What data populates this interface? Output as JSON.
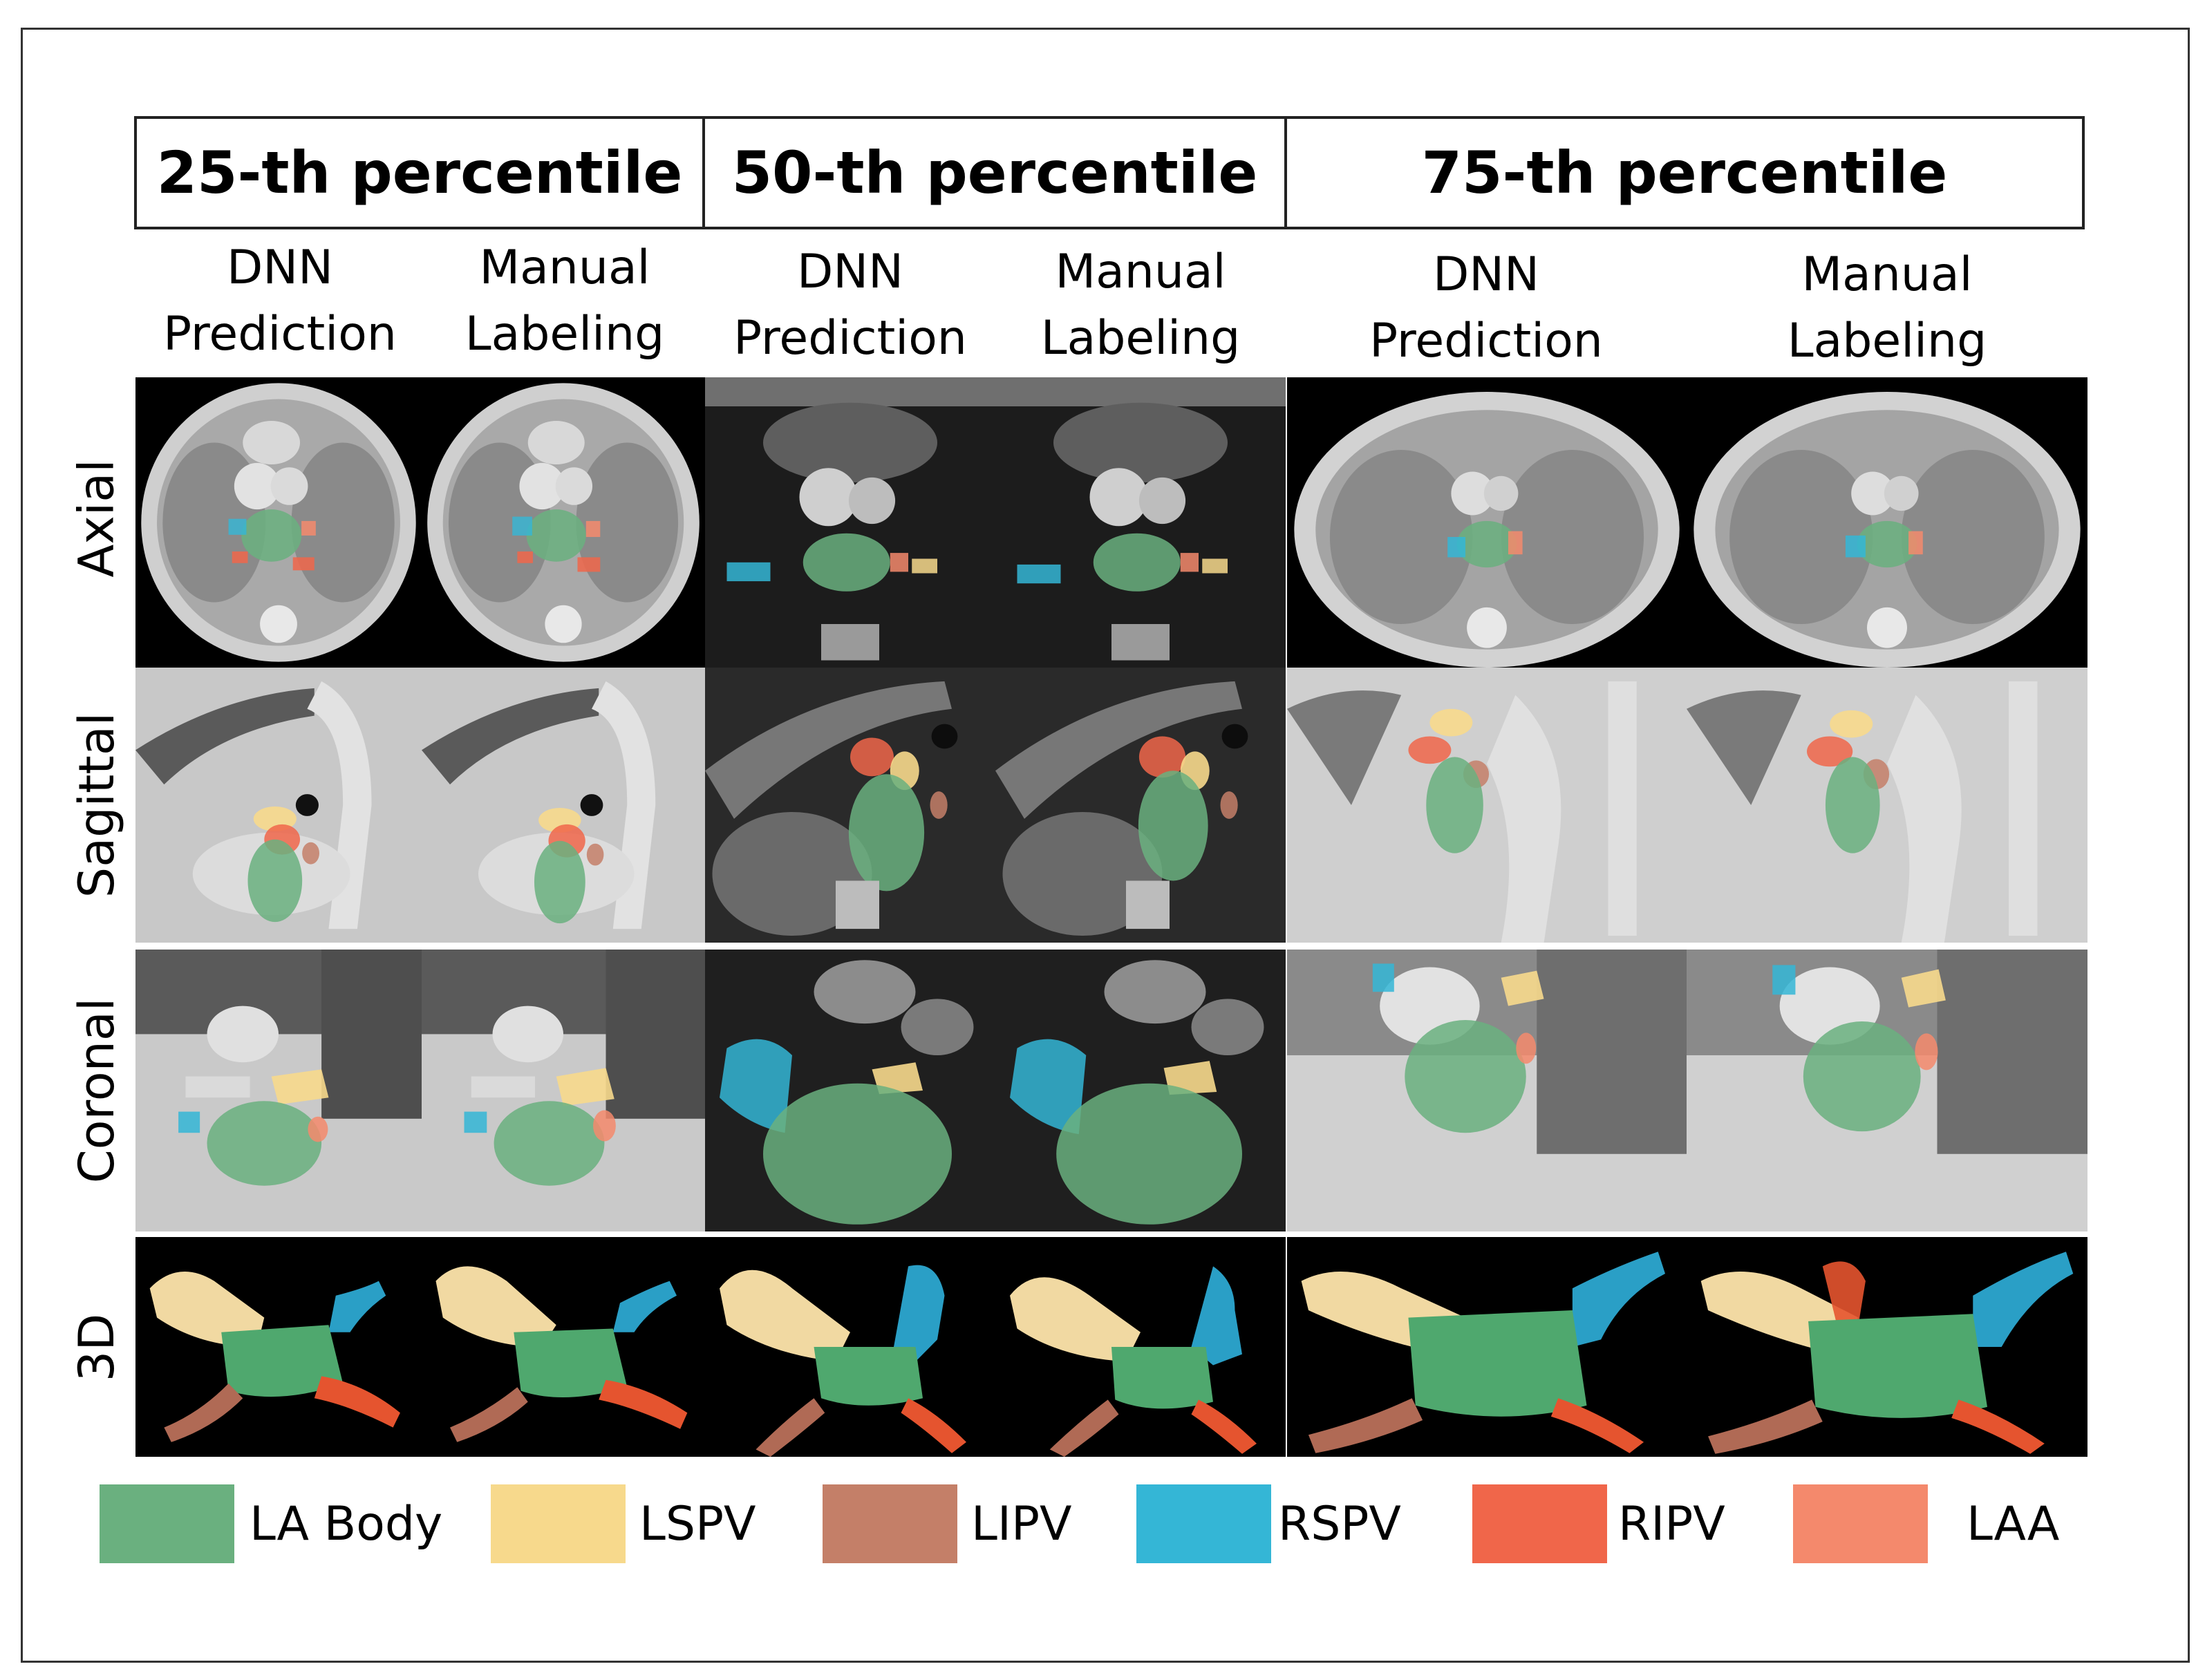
{
  "headers": [
    "25-th percentile",
    "50-th percentile",
    "75-th percentile"
  ],
  "subheaders": [
    {
      "line1": "DNN",
      "line2": "Prediction"
    },
    {
      "line1": "Manual",
      "line2": "Labeling"
    },
    {
      "line1": "DNN",
      "line2": "Prediction"
    },
    {
      "line1": "Manual",
      "line2": "Labeling"
    },
    {
      "line1": "DNN",
      "line2": "Prediction"
    },
    {
      "line1": "Manual",
      "line2": "Labeling"
    }
  ],
  "rows": [
    "Axial",
    "Sagittal",
    "Coronal",
    "3D"
  ],
  "legend": [
    {
      "label": "LA Body",
      "color": "#6ab07f"
    },
    {
      "label": "LSPV",
      "color": "#f7d98c"
    },
    {
      "label": "LIPV",
      "color": "#c47f68"
    },
    {
      "label": "RSPV",
      "color": "#34b6d6"
    },
    {
      "label": "RIPV",
      "color": "#f0664a"
    },
    {
      "label": "LAA",
      "color": "#f4896c"
    }
  ]
}
